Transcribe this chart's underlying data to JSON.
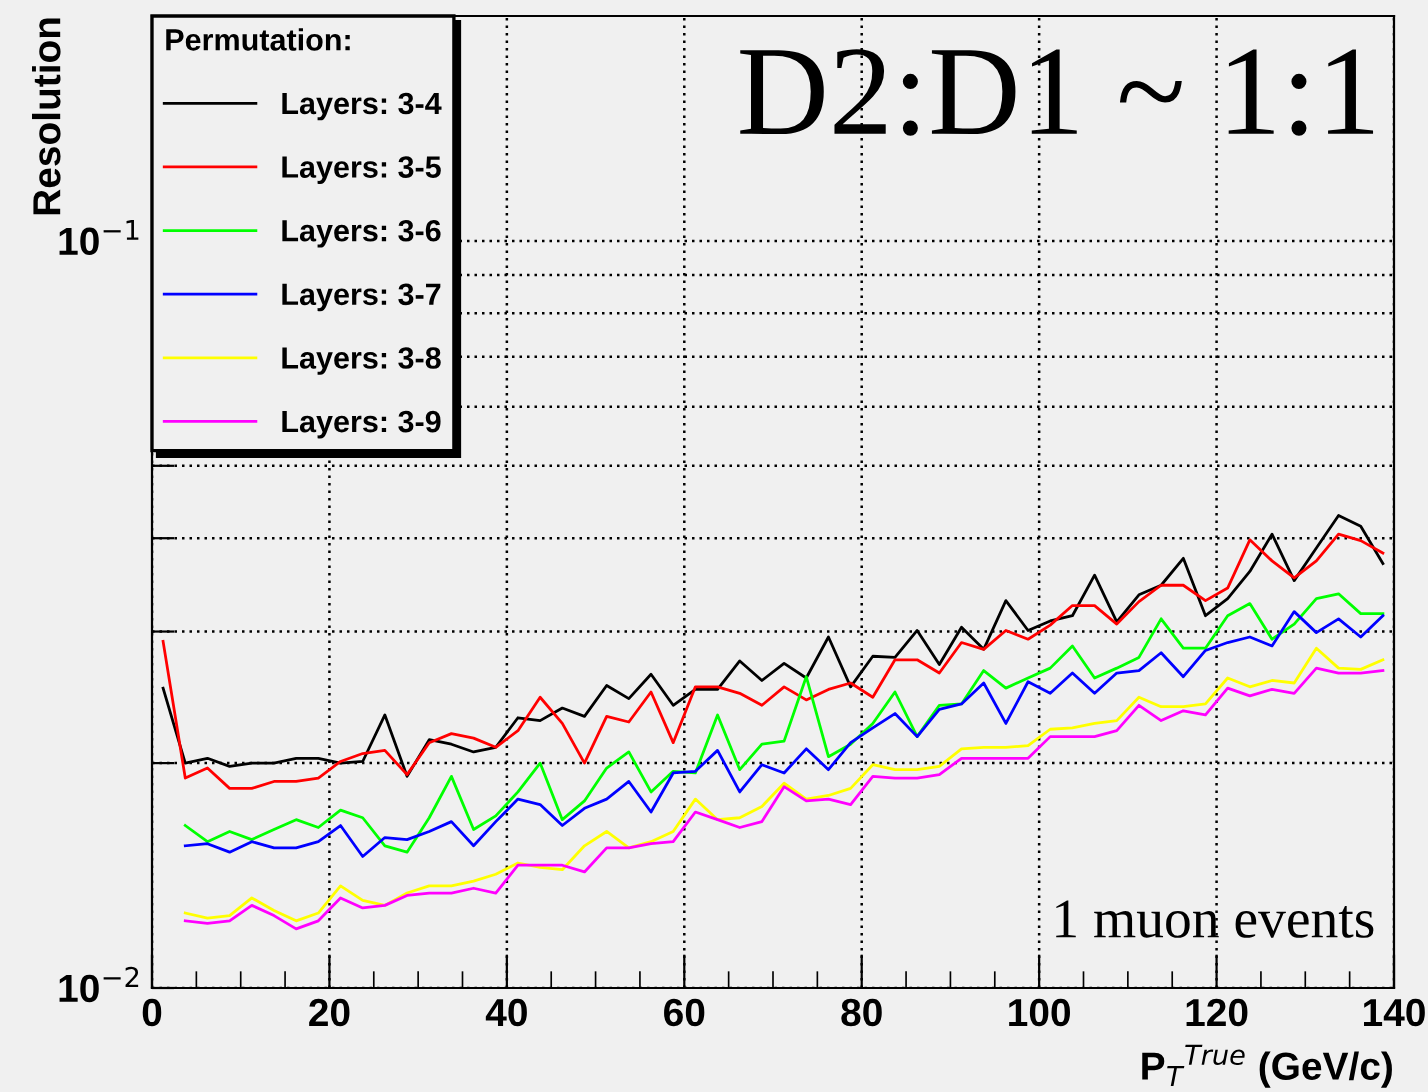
{
  "chart_data": {
    "type": "line",
    "title": "D2:D1 ~ 1:1",
    "xlabel": "P$_{T}$$^{True}$ (GeV/c)",
    "ylabel": "Resolution",
    "legend_title": "Permutation:",
    "annotations": [
      "1 muon events"
    ],
    "x": [
      1.25,
      3.75,
      6.25,
      8.75,
      11.25,
      13.75,
      16.25,
      18.75,
      21.25,
      23.75,
      26.25,
      28.75,
      31.25,
      33.75,
      36.25,
      38.75,
      41.25,
      43.75,
      46.25,
      48.75,
      51.25,
      53.75,
      56.25,
      58.75,
      61.25,
      63.75,
      66.25,
      68.75,
      71.25,
      73.75,
      76.25,
      78.75,
      81.25,
      83.75,
      86.25,
      88.75,
      91.25,
      93.75,
      96.25,
      98.75,
      101.25,
      103.75,
      106.25,
      108.75,
      111.25,
      113.75,
      116.25,
      118.75,
      121.25,
      123.75,
      126.25,
      128.75,
      131.25,
      133.75,
      136.25,
      138.75
    ],
    "series": [
      {
        "name": "Layers: 3-4",
        "color": "#000000",
        "values": [
          0.0252,
          0.02,
          0.0203,
          0.0198,
          0.02,
          0.02,
          0.0203,
          0.0203,
          0.02,
          0.0201,
          0.0232,
          0.0192,
          0.0215,
          0.0212,
          0.0207,
          0.021,
          0.023,
          0.0228,
          0.0237,
          0.0231,
          0.0254,
          0.0244,
          0.0263,
          0.0239,
          0.0251,
          0.0251,
          0.0274,
          0.0258,
          0.0272,
          0.026,
          0.0295,
          0.0253,
          0.0278,
          0.0277,
          0.0301,
          0.0271,
          0.0304,
          0.0284,
          0.033,
          0.0301,
          0.031,
          0.0315,
          0.0357,
          0.0309,
          0.0336,
          0.0346,
          0.0376,
          0.0315,
          0.0332,
          0.0361,
          0.0405,
          0.0351,
          0.0388,
          0.0429,
          0.0415,
          0.037
        ]
      },
      {
        "name": "Layers: 3-5",
        "color": "#ff0000",
        "values": [
          0.0291,
          0.0191,
          0.0197,
          0.0185,
          0.0185,
          0.0189,
          0.0189,
          0.0191,
          0.0201,
          0.0206,
          0.0208,
          0.0193,
          0.0213,
          0.0219,
          0.0216,
          0.021,
          0.0221,
          0.0245,
          0.0226,
          0.02,
          0.0231,
          0.0227,
          0.0249,
          0.0213,
          0.0253,
          0.0253,
          0.0248,
          0.0239,
          0.0253,
          0.0243,
          0.0251,
          0.0256,
          0.0245,
          0.0275,
          0.0275,
          0.0264,
          0.029,
          0.0284,
          0.0301,
          0.0293,
          0.0306,
          0.0325,
          0.0325,
          0.0307,
          0.0329,
          0.0346,
          0.0346,
          0.033,
          0.0343,
          0.0398,
          0.0373,
          0.0354,
          0.0373,
          0.0405,
          0.0397,
          0.0382
        ]
      },
      {
        "name": "Layers: 3-6",
        "color": "#00ff00",
        "values": [
          null,
          0.0165,
          0.0157,
          0.0162,
          0.0158,
          0.0163,
          0.0168,
          0.0164,
          0.0173,
          0.0169,
          0.0155,
          0.0152,
          0.0169,
          0.0192,
          0.0163,
          0.017,
          0.0183,
          0.02,
          0.0168,
          0.0178,
          0.0197,
          0.0207,
          0.0183,
          0.0195,
          0.0194,
          0.0232,
          0.0196,
          0.0212,
          0.0214,
          0.0261,
          0.0204,
          0.0212,
          0.0226,
          0.0249,
          0.0217,
          0.0239,
          0.024,
          0.0266,
          0.0252,
          0.026,
          0.0268,
          0.0287,
          0.026,
          0.0268,
          0.0277,
          0.0312,
          0.0285,
          0.0285,
          0.0315,
          0.0327,
          0.0293,
          0.0307,
          0.0332,
          0.0337,
          0.0317,
          0.0317
        ]
      },
      {
        "name": "Layers: 3-7",
        "color": "#0000ff",
        "values": [
          null,
          0.0155,
          0.0156,
          0.0152,
          0.0157,
          0.0154,
          0.0154,
          0.0157,
          0.0165,
          0.015,
          0.0159,
          0.0158,
          0.0162,
          0.0167,
          0.0155,
          0.0167,
          0.0179,
          0.0176,
          0.0165,
          0.0174,
          0.0179,
          0.0189,
          0.0172,
          0.0194,
          0.0195,
          0.0208,
          0.0183,
          0.0199,
          0.0194,
          0.0209,
          0.0196,
          0.0213,
          0.0223,
          0.0233,
          0.0217,
          0.0236,
          0.024,
          0.0256,
          0.0226,
          0.0257,
          0.0248,
          0.0264,
          0.0248,
          0.0264,
          0.0266,
          0.0281,
          0.0261,
          0.0283,
          0.029,
          0.0295,
          0.0287,
          0.0319,
          0.0299,
          0.0312,
          0.0295,
          0.0315
        ]
      },
      {
        "name": "Layers: 3-8",
        "color": "#ffff00",
        "values": [
          null,
          0.0126,
          0.0124,
          0.0125,
          0.0132,
          0.0127,
          0.0123,
          0.0126,
          0.0137,
          0.0131,
          0.0129,
          0.0134,
          0.0137,
          0.0137,
          0.0139,
          0.0142,
          0.0147,
          0.0145,
          0.0144,
          0.0155,
          0.0162,
          0.0154,
          0.0157,
          0.0162,
          0.0179,
          0.0168,
          0.0169,
          0.0175,
          0.0188,
          0.0179,
          0.0181,
          0.0185,
          0.0199,
          0.0196,
          0.0196,
          0.0198,
          0.0209,
          0.021,
          0.021,
          0.0211,
          0.0222,
          0.0223,
          0.0226,
          0.0228,
          0.0245,
          0.0238,
          0.0238,
          0.024,
          0.026,
          0.0253,
          0.0258,
          0.0256,
          0.0285,
          0.0268,
          0.0267,
          0.0275
        ]
      },
      {
        "name": "Layers: 3-9",
        "color": "#ff00ff",
        "values": [
          null,
          0.0123,
          0.0122,
          0.0123,
          0.0129,
          0.0125,
          0.012,
          0.0123,
          0.0132,
          0.0128,
          0.0129,
          0.0133,
          0.0134,
          0.0134,
          0.0136,
          0.0134,
          0.0146,
          0.0146,
          0.0146,
          0.0143,
          0.0154,
          0.0154,
          0.0156,
          0.0157,
          0.0172,
          0.0168,
          0.0164,
          0.0167,
          0.0186,
          0.0178,
          0.0179,
          0.0176,
          0.0192,
          0.0191,
          0.0191,
          0.0193,
          0.0203,
          0.0203,
          0.0203,
          0.0203,
          0.0217,
          0.0217,
          0.0217,
          0.0221,
          0.0239,
          0.0228,
          0.0235,
          0.0232,
          0.0252,
          0.0246,
          0.0251,
          0.0248,
          0.0268,
          0.0264,
          0.0264,
          0.0266
        ]
      }
    ],
    "log": "y",
    "xlim": [
      0,
      140
    ],
    "ylim": [
      0.01,
      0.2
    ],
    "xticks": [
      0,
      {
        "value": 5,
        "label": null
      },
      {
        "value": 10,
        "label": null
      },
      {
        "value": 15,
        "label": null
      },
      20,
      {
        "value": 25,
        "label": null
      },
      {
        "value": 30,
        "label": null
      },
      {
        "value": 35,
        "label": null
      },
      40,
      {
        "value": 45,
        "label": null
      },
      {
        "value": 50,
        "label": null
      },
      {
        "value": 55,
        "label": null
      },
      60,
      {
        "value": 65,
        "label": null
      },
      {
        "value": 70,
        "label": null
      },
      {
        "value": 75,
        "label": null
      },
      80,
      {
        "value": 85,
        "label": null
      },
      {
        "value": 90,
        "label": null
      },
      {
        "value": 95,
        "label": null
      },
      100,
      {
        "value": 105,
        "label": null
      },
      {
        "value": 110,
        "label": null
      },
      {
        "value": 115,
        "label": null
      },
      120,
      {
        "value": 125,
        "label": null
      },
      {
        "value": 130,
        "label": null
      },
      {
        "value": 135,
        "label": null
      },
      140
    ],
    "yticks": [
      {
        "value": 0.01,
        "label": "10$^{−2}$"
      },
      {
        "value": 0.02,
        "label": null
      },
      {
        "value": 0.03,
        "label": null
      },
      {
        "value": 0.04,
        "label": null
      },
      {
        "value": 0.05,
        "label": null
      },
      {
        "value": 0.06,
        "label": null
      },
      {
        "value": 0.07,
        "label": null
      },
      {
        "value": 0.08,
        "label": null
      },
      {
        "value": 0.09,
        "label": null
      },
      {
        "value": 0.1,
        "label": "10$^{−1}$"
      }
    ],
    "grid": true,
    "legend": "top left",
    "marker": "none",
    "line_style": "solid"
  }
}
